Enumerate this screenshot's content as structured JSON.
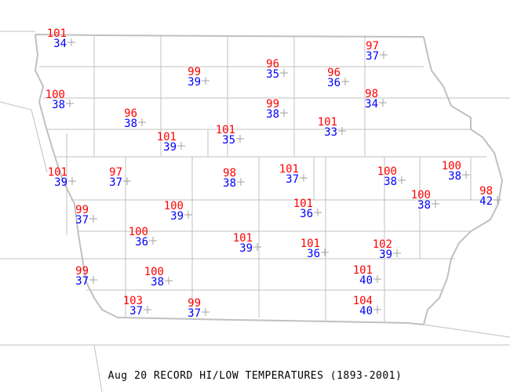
{
  "title": "Aug 20 RECORD HI/LOW TEMPERATURES (1893-2001)",
  "colors": {
    "high": "#ff0000",
    "low": "#0000ff",
    "marker": "#a0a0a0",
    "boundaries": "#c0c0c0"
  },
  "stations": [
    {
      "hi": "101",
      "lo": "34"
    },
    {
      "hi": "99",
      "lo": "39"
    },
    {
      "hi": "96",
      "lo": "35"
    },
    {
      "hi": "97",
      "lo": "37"
    },
    {
      "hi": "96",
      "lo": "36"
    },
    {
      "hi": "100",
      "lo": "38"
    },
    {
      "hi": "98",
      "lo": "34"
    },
    {
      "hi": "99",
      "lo": "38"
    },
    {
      "hi": "96",
      "lo": "38"
    },
    {
      "hi": "101",
      "lo": "33"
    },
    {
      "hi": "101",
      "lo": "39"
    },
    {
      "hi": "101",
      "lo": "35"
    },
    {
      "hi": "101",
      "lo": "39"
    },
    {
      "hi": "97",
      "lo": "37"
    },
    {
      "hi": "98",
      "lo": "38"
    },
    {
      "hi": "101",
      "lo": "37"
    },
    {
      "hi": "100",
      "lo": "38"
    },
    {
      "hi": "100",
      "lo": "38"
    },
    {
      "hi": "100",
      "lo": "38"
    },
    {
      "hi": "98",
      "lo": "42"
    },
    {
      "hi": "99",
      "lo": "37"
    },
    {
      "hi": "100",
      "lo": "39"
    },
    {
      "hi": "101",
      "lo": "36"
    },
    {
      "hi": "100",
      "lo": "36"
    },
    {
      "hi": "101",
      "lo": "39"
    },
    {
      "hi": "101",
      "lo": "36"
    },
    {
      "hi": "102",
      "lo": "39"
    },
    {
      "hi": "99",
      "lo": "37"
    },
    {
      "hi": "100",
      "lo": "38"
    },
    {
      "hi": "101",
      "lo": "40"
    },
    {
      "hi": "103",
      "lo": "37"
    },
    {
      "hi": "99",
      "lo": "37"
    },
    {
      "hi": "104",
      "lo": "40"
    }
  ]
}
